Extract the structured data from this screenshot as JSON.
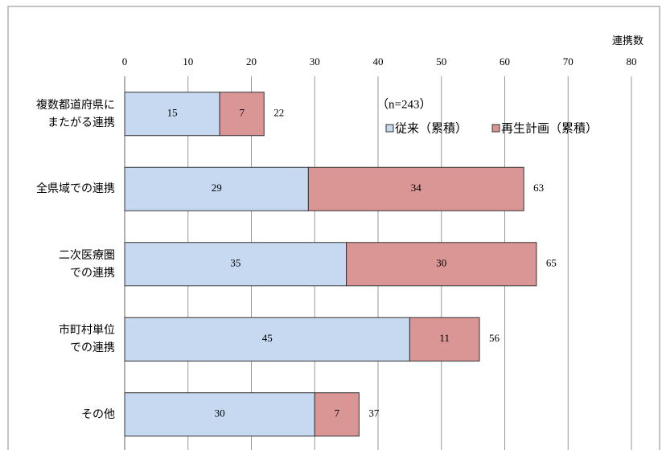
{
  "chart_data": {
    "type": "stacked-barh",
    "x_label": "連携数",
    "annotation": "（n=243）",
    "categories": [
      "複数都道府県に\nまたがる連携",
      "全県域での連携",
      "二次医療圏\nでの連携",
      "市町村単位\nでの連携",
      "その他"
    ],
    "series": [
      {
        "name": "従来（累積）",
        "color": "#c6d9f1",
        "values": [
          15,
          29,
          35,
          45,
          30
        ]
      },
      {
        "name": "再生計画（累積）",
        "color": "#d99694",
        "values": [
          7,
          34,
          30,
          11,
          7
        ]
      }
    ],
    "totals": [
      22,
      63,
      65,
      56,
      37
    ],
    "xlim": [
      0,
      80
    ],
    "xticks": [
      0,
      10,
      20,
      30,
      40,
      50,
      60,
      70,
      80
    ],
    "grid": true
  }
}
